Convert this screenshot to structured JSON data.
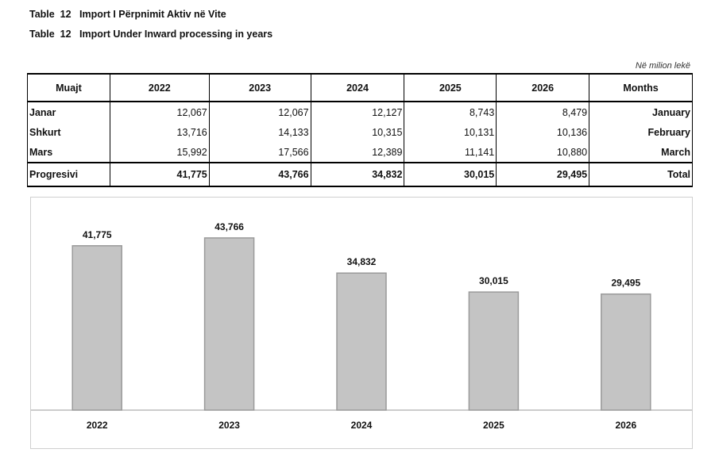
{
  "titles": {
    "line1": "Table  12   Import I Përpnimit Aktiv në Vite",
    "line2": "Table  12   Import Under Inward processing in years"
  },
  "unit_note": "Në milion lekë",
  "table": {
    "headers": [
      "Muajt",
      "2022",
      "2023",
      "2024",
      "2025",
      "2026",
      "Months"
    ],
    "rows": [
      {
        "label": "Janar",
        "values": [
          "12,067",
          "12,067",
          "12,127",
          "8,743",
          "8,479"
        ],
        "english": "January"
      },
      {
        "label": "Shkurt",
        "values": [
          "13,716",
          "14,133",
          "10,315",
          "10,131",
          "10,136"
        ],
        "english": "February"
      },
      {
        "label": "Mars",
        "values": [
          "15,992",
          "17,566",
          "12,389",
          "11,141",
          "10,880"
        ],
        "english": "March"
      }
    ],
    "total": {
      "label": "Progresivi",
      "values": [
        "41,775",
        "43,766",
        "34,832",
        "30,015",
        "29,495"
      ],
      "english": "Total"
    }
  },
  "chart_data": {
    "type": "bar",
    "categories": [
      "2022",
      "2023",
      "2024",
      "2025",
      "2026"
    ],
    "values": [
      41775,
      43766,
      34832,
      30015,
      29495
    ],
    "data_labels": [
      "41,775",
      "43,766",
      "34,832",
      "30,015",
      "29,495"
    ],
    "title": "",
    "xlabel": "",
    "ylabel": "",
    "ylim": [
      0,
      50000
    ],
    "grid": false,
    "legend": "none",
    "bar_color": "#c4c4c4",
    "bar_edge_color": "#9a9a9a"
  }
}
